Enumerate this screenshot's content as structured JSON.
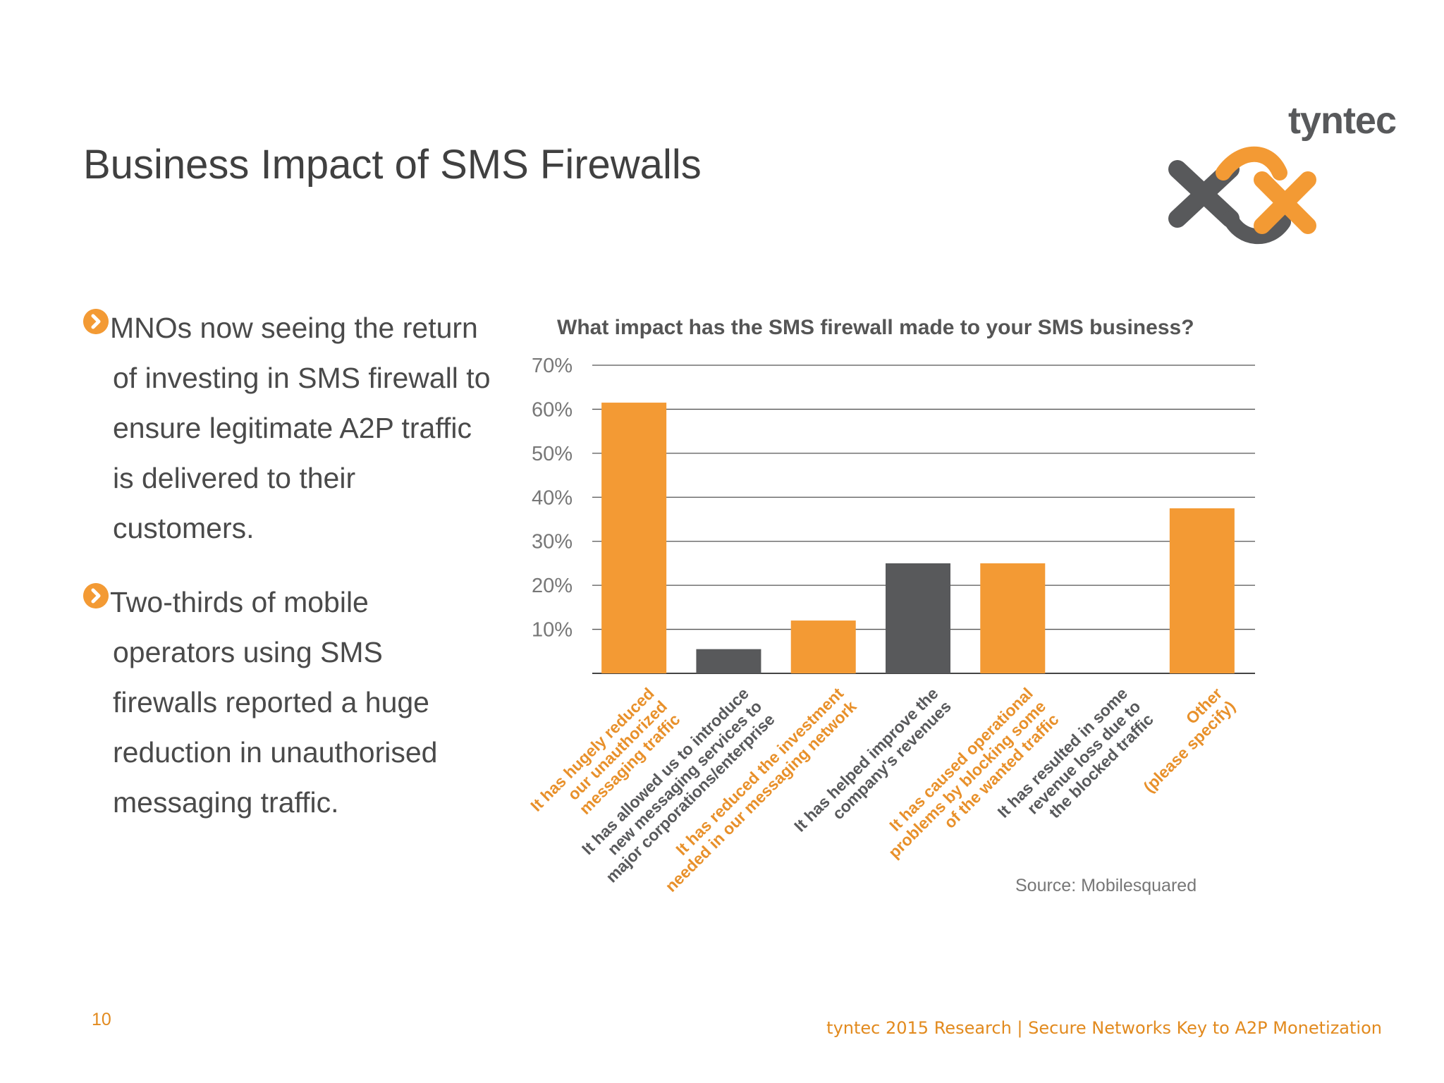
{
  "slide": {
    "title": "Business Impact of SMS Firewalls",
    "page_number": "10",
    "footer": "tyntec 2015 Research | Secure Networks Key to A2P Monetization"
  },
  "logo": {
    "text": "tyntec"
  },
  "bullets": [
    {
      "text": "MNOs now seeing the return of investing in SMS firewall to ensure legitimate A2P traffic is delivered to their customers."
    },
    {
      "text": "Two-thirds of mobile operators using SMS firewalls reported a huge reduction in unauthorised messaging traffic."
    }
  ],
  "chart_data": {
    "type": "bar",
    "title": "What impact has the SMS firewall made to your SMS business?",
    "source": "Source: Mobilesquared",
    "categories": [
      "It has hugely reduced our unauthorized messaging traffic",
      "It has allowed us to introduce new messaging services to major corporations/enterprise",
      "It has reduced the investment needed in our messaging network",
      "It has helped improve the company's revenues",
      "It has caused operational problems by blocking some of the wanted traffic",
      "It has resulted in some revenue loss due to the blocked traffic",
      "Other (please specify)"
    ],
    "category_lines": [
      [
        "It has hugely reduced",
        "our unauthorized",
        "messaging traffic"
      ],
      [
        "It has allowed us to introduce",
        "new messaging services to",
        "major corporations/enterprise"
      ],
      [
        "It has reduced the investment",
        "needed in our messaging network"
      ],
      [
        "It has helped improve the",
        "company's revenues"
      ],
      [
        "It has caused operational",
        "problems by blocking some",
        "of the wanted traffic"
      ],
      [
        "It has resulted in some",
        "revenue loss due to",
        "the blocked traffic"
      ],
      [
        "Other",
        "(please specify)"
      ]
    ],
    "values": [
      61.5,
      5.5,
      12,
      25,
      25,
      0,
      37.5
    ],
    "bar_colors": [
      "#f39a34",
      "#58595b",
      "#f39a34",
      "#58595b",
      "#f39a34",
      "#58595b",
      "#f39a34"
    ],
    "ylim": [
      0,
      70
    ],
    "yticks": [
      "70%",
      "60%",
      "50%",
      "40%",
      "30%",
      "20%",
      "10%"
    ],
    "ytick_values": [
      70,
      60,
      50,
      40,
      30,
      20,
      10
    ],
    "grid": true,
    "colors": {
      "orange": "#f39a34",
      "gray": "#58595b"
    }
  }
}
